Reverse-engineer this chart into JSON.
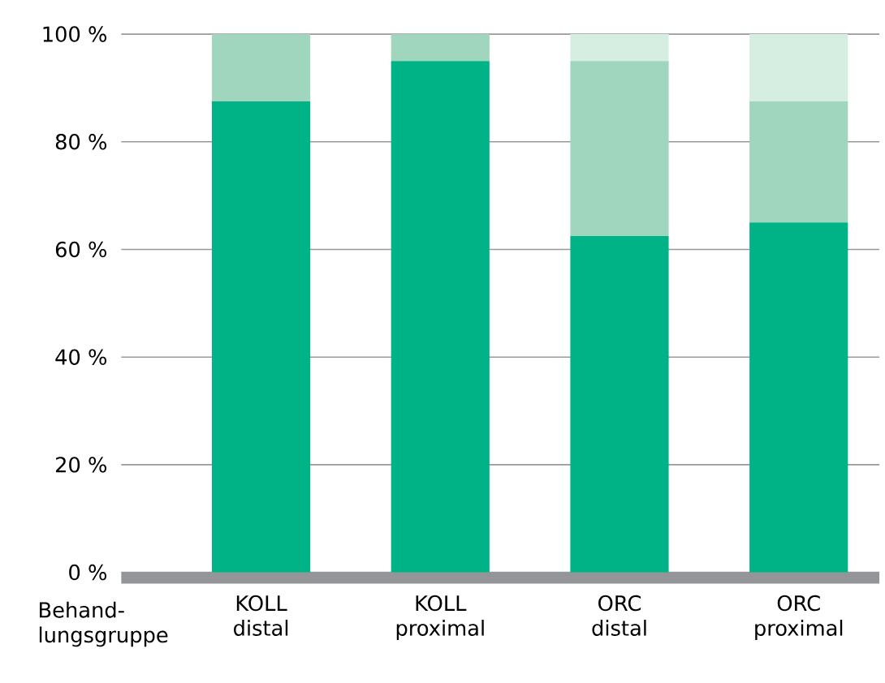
{
  "chart_data": {
    "type": "bar",
    "stacked": true,
    "xlabel": "Behand-lungsgruppe",
    "categories": [
      "KOLL distal",
      "KOLL proximal",
      "ORC distal",
      "ORC proximal"
    ],
    "series": [
      {
        "color": "#00b386",
        "values": [
          87.5,
          95,
          62.5,
          65
        ]
      },
      {
        "color": "#a0d6bd",
        "values": [
          12.5,
          5,
          32.5,
          22.5
        ]
      },
      {
        "color": "#d6eee2",
        "values": [
          0,
          0,
          5,
          12.5
        ]
      }
    ],
    "ylim": [
      0,
      100
    ],
    "yticks": [
      {
        "value": 0,
        "label": "0 %"
      },
      {
        "value": 20,
        "label": "20 %"
      },
      {
        "value": 40,
        "label": "40 %"
      },
      {
        "value": 60,
        "label": "60 %"
      },
      {
        "value": 80,
        "label": "80 %"
      },
      {
        "value": 100,
        "label": "100 %"
      }
    ],
    "grid": "y"
  }
}
